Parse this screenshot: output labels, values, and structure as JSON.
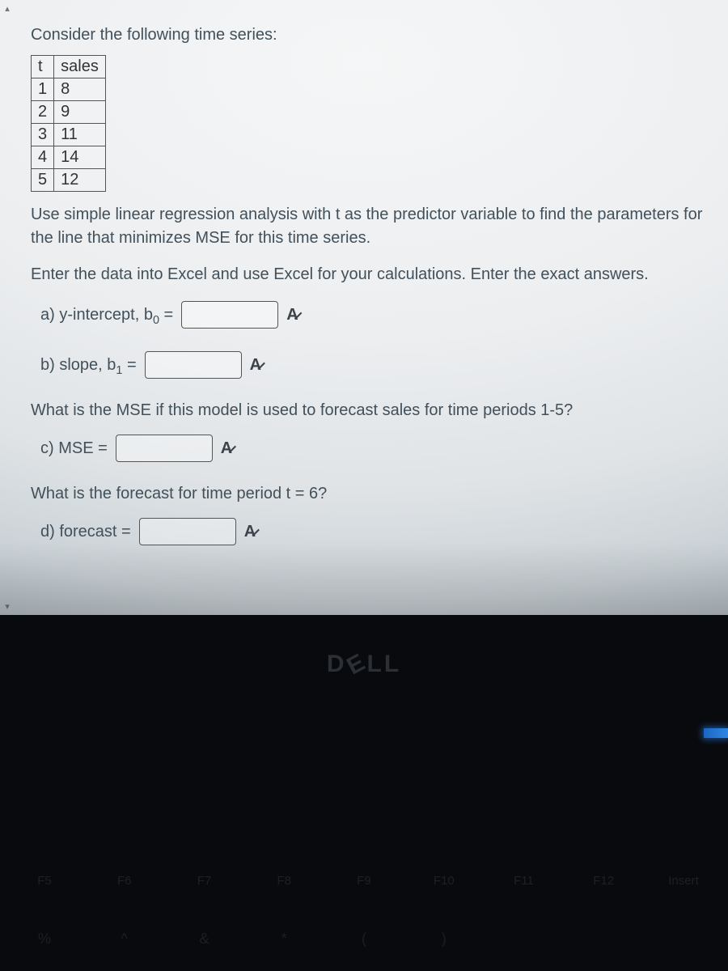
{
  "colors": {
    "text": "#41505a",
    "border": "#555555",
    "screen_bg_center": "#f5f6f7",
    "screen_bg_edge": "#aeb7bd",
    "body_bg": "#090a0e",
    "logo": "#2b2f36",
    "led": "#2f86e5"
  },
  "intro": "Consider the following time series:",
  "table": {
    "columns": [
      "t",
      "sales"
    ],
    "rows": [
      [
        "1",
        "8"
      ],
      [
        "2",
        "9"
      ],
      [
        "3",
        "11"
      ],
      [
        "4",
        "14"
      ],
      [
        "5",
        "12"
      ]
    ]
  },
  "instruction1": "Use simple linear regression analysis with t as the predictor variable to find the parameters for the line that minimizes MSE for this time series.",
  "instruction2": "Enter the data into Excel and use Excel for your calculations. Enter the exact answers.",
  "qa": {
    "a_label_pre": "a) y-intercept, b",
    "a_sub": "0",
    "a_label_post": " =",
    "b_label_pre": "b) slope, b",
    "b_sub": "1",
    "b_label_post": " =",
    "mse_question": "What is the MSE if this model is used to forecast sales for time periods 1-5?",
    "c_label": "c) MSE =",
    "forecast_question": "What is the forecast for time period t = 6?",
    "d_label": "d) forecast ="
  },
  "check_glyph": "A̷ ",
  "laptop": {
    "brand": "D ELL",
    "fn_keys": [
      "F5",
      "F6",
      "F7",
      "F8",
      "F9",
      "F10",
      "F11",
      "F12",
      "Insert"
    ],
    "num_keys": [
      "%",
      "^",
      "&",
      "*",
      "(",
      ")",
      "",
      "",
      ""
    ]
  }
}
